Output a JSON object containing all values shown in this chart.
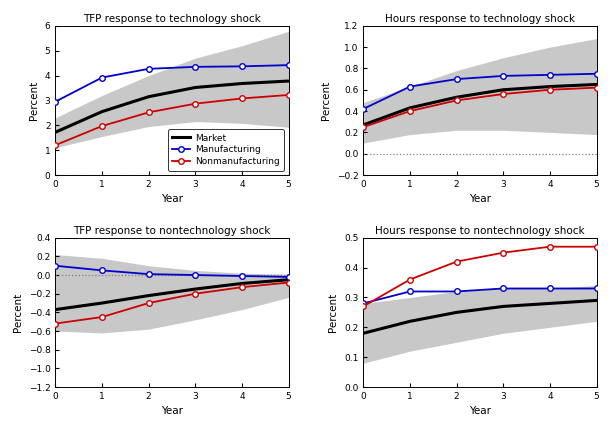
{
  "years": [
    0,
    1,
    2,
    3,
    4,
    5
  ],
  "panels": [
    {
      "title": "TFP response to technology shock",
      "ylim": [
        0,
        6
      ],
      "yticks": [
        0,
        1,
        2,
        3,
        4,
        5,
        6
      ],
      "ylabel": "Percent",
      "xlabel": "Year",
      "hline": null,
      "dotted_bottom": true,
      "show_legend": true,
      "market": [
        1.72,
        2.55,
        3.15,
        3.52,
        3.68,
        3.78
      ],
      "manufacturing": [
        2.95,
        3.92,
        4.27,
        4.35,
        4.37,
        4.42
      ],
      "nonmfg": [
        1.2,
        1.97,
        2.52,
        2.87,
        3.08,
        3.22
      ],
      "ci_upper": [
        2.3,
        3.2,
        4.0,
        4.7,
        5.2,
        5.78
      ],
      "ci_lower": [
        1.1,
        1.55,
        1.95,
        2.15,
        2.08,
        1.92
      ]
    },
    {
      "title": "Hours response to technology shock",
      "ylim": [
        -0.2,
        1.2
      ],
      "yticks": [
        -0.2,
        0.0,
        0.2,
        0.4,
        0.6,
        0.8,
        1.0,
        1.2
      ],
      "ylabel": "Percent",
      "xlabel": "Year",
      "hline": 0,
      "dotted_bottom": false,
      "show_legend": false,
      "market": [
        0.27,
        0.43,
        0.53,
        0.6,
        0.63,
        0.65
      ],
      "manufacturing": [
        0.42,
        0.63,
        0.7,
        0.73,
        0.74,
        0.75
      ],
      "nonmfg": [
        0.25,
        0.4,
        0.5,
        0.56,
        0.6,
        0.62
      ],
      "ci_upper": [
        0.48,
        0.63,
        0.78,
        0.9,
        1.0,
        1.08
      ],
      "ci_lower": [
        0.1,
        0.18,
        0.22,
        0.22,
        0.2,
        0.18
      ]
    },
    {
      "title": "TFP response to nontechnology shock",
      "ylim": [
        -1.2,
        0.4
      ],
      "yticks": [
        -1.2,
        -1.0,
        -0.8,
        -0.6,
        -0.4,
        -0.2,
        0.0,
        0.2,
        0.4
      ],
      "ylabel": "Percent",
      "xlabel": "Year",
      "hline": 0,
      "dotted_bottom": false,
      "show_legend": false,
      "market": [
        -0.37,
        -0.3,
        -0.22,
        -0.15,
        -0.09,
        -0.05
      ],
      "manufacturing": [
        0.1,
        0.05,
        0.01,
        0.0,
        -0.01,
        -0.02
      ],
      "nonmfg": [
        -0.52,
        -0.45,
        -0.3,
        -0.2,
        -0.13,
        -0.08
      ],
      "ci_upper": [
        0.22,
        0.18,
        0.1,
        0.05,
        0.02,
        0.01
      ],
      "ci_lower": [
        -0.6,
        -0.62,
        -0.58,
        -0.48,
        -0.37,
        -0.24
      ]
    },
    {
      "title": "Hours response to nontechnology shock",
      "ylim": [
        0,
        0.5
      ],
      "yticks": [
        0.0,
        0.1,
        0.2,
        0.3,
        0.4,
        0.5
      ],
      "ylabel": "Percent",
      "xlabel": "Year",
      "hline": null,
      "dotted_bottom": false,
      "show_legend": false,
      "market": [
        0.18,
        0.22,
        0.25,
        0.27,
        0.28,
        0.29
      ],
      "manufacturing": [
        0.28,
        0.32,
        0.32,
        0.33,
        0.33,
        0.33
      ],
      "nonmfg": [
        0.27,
        0.36,
        0.42,
        0.45,
        0.47,
        0.47
      ],
      "ci_upper": [
        0.28,
        0.3,
        0.32,
        0.33,
        0.33,
        0.34
      ],
      "ci_lower": [
        0.08,
        0.12,
        0.15,
        0.18,
        0.2,
        0.22
      ]
    }
  ],
  "colors": {
    "market": "#000000",
    "manufacturing": "#0000cc",
    "nonmfg": "#cc0000",
    "ci_fill": "#c8c8c8"
  },
  "legend_labels": [
    "Market",
    "Manufacturing",
    "Nonmanufacturing"
  ],
  "marker": "o",
  "markersize": 4,
  "linewidth_market": 2.2,
  "linewidth_sector": 1.3
}
